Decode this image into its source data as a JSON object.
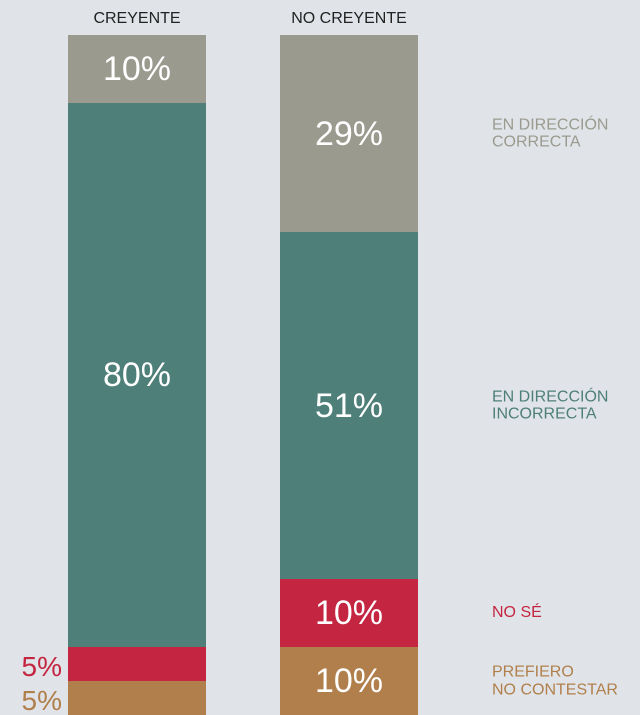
{
  "chart_data": {
    "type": "stacked_bar",
    "categories": [
      "CREYENTE",
      "NO CREYENTE"
    ],
    "ylim": [
      0,
      100
    ],
    "series": [
      {
        "name": "PREFIERO\nNO CONTESTAR",
        "color": "#b07f4b",
        "values": [
          5,
          10
        ],
        "value_labels": [
          "5%",
          "10%"
        ]
      },
      {
        "name": "NO SÉ",
        "color": "#c42540",
        "values": [
          5,
          10
        ],
        "value_labels": [
          "5%",
          "10%"
        ]
      },
      {
        "name": "EN DIRECCIÓN\nINCORRECTA",
        "color": "#4e7f79",
        "values": [
          80,
          51
        ],
        "value_labels": [
          "80%",
          "51%"
        ]
      },
      {
        "name": "EN DIRECCIÓN\nCORRECTA",
        "color": "#9a9a8f",
        "values": [
          10,
          29
        ],
        "value_labels": [
          "10%",
          "29%"
        ]
      }
    ]
  }
}
